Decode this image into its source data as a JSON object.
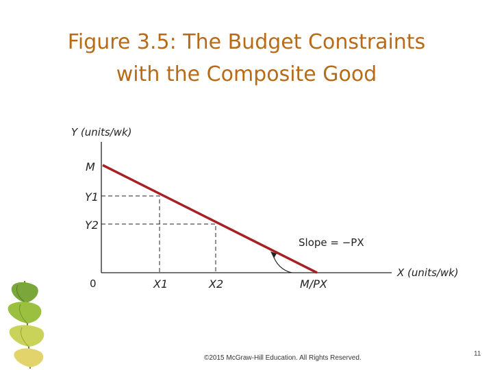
{
  "slide": {
    "title_line1": "Figure 3.5: The Budget Constraints",
    "title_line2": "with the Composite Good",
    "footer": "©2015 McGraw-Hill Education. All Rights Reserved.",
    "page_number": "11"
  },
  "diagram": {
    "y_axis_label": "Y (units/wk)",
    "x_axis_label": "X (units/wk)",
    "origin_label": "0",
    "y_intercept_label": "M",
    "x_intercept_label": "M/PX",
    "y1_label": "Y1",
    "y2_label": "Y2",
    "x1_label": "X1",
    "x2_label": "X2",
    "slope_label": "Slope = −PX"
  },
  "colors": {
    "title": "#b86a16",
    "budget_line": "#a52124",
    "axes": "#222222"
  },
  "icons": {
    "decoration": "ginkgo-leaves-icon"
  }
}
